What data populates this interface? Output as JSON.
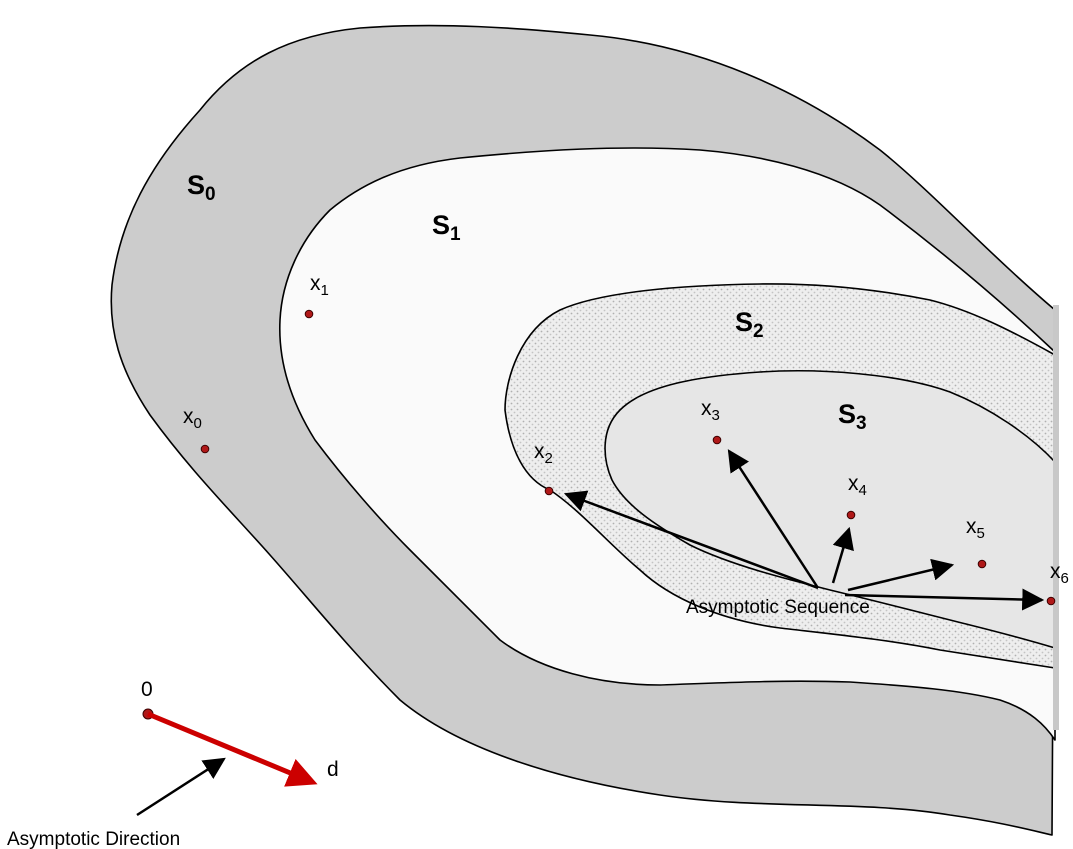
{
  "regions": [
    {
      "id": "s0",
      "base": "S",
      "sub": "0",
      "fill": "#cccccc"
    },
    {
      "id": "s1",
      "base": "S",
      "sub": "1",
      "fill": "#fafafa"
    },
    {
      "id": "s2",
      "base": "S",
      "sub": "2",
      "fill": "#ededed"
    },
    {
      "id": "s3",
      "base": "S",
      "sub": "3",
      "fill": "#e6e6e6"
    }
  ],
  "points": [
    {
      "base": "x",
      "sub": "0"
    },
    {
      "base": "x",
      "sub": "1"
    },
    {
      "base": "x",
      "sub": "2"
    },
    {
      "base": "x",
      "sub": "3"
    },
    {
      "base": "x",
      "sub": "4"
    },
    {
      "base": "x",
      "sub": "5"
    },
    {
      "base": "x",
      "sub": "6"
    }
  ],
  "origin_label": "0",
  "direction_label": "d",
  "sequence_caption": "Asymptotic Sequence",
  "direction_caption": "Asymptotic Direction",
  "colors": {
    "point": "#b01818",
    "direction_arrow": "#cc0000",
    "arrow": "#000000"
  }
}
